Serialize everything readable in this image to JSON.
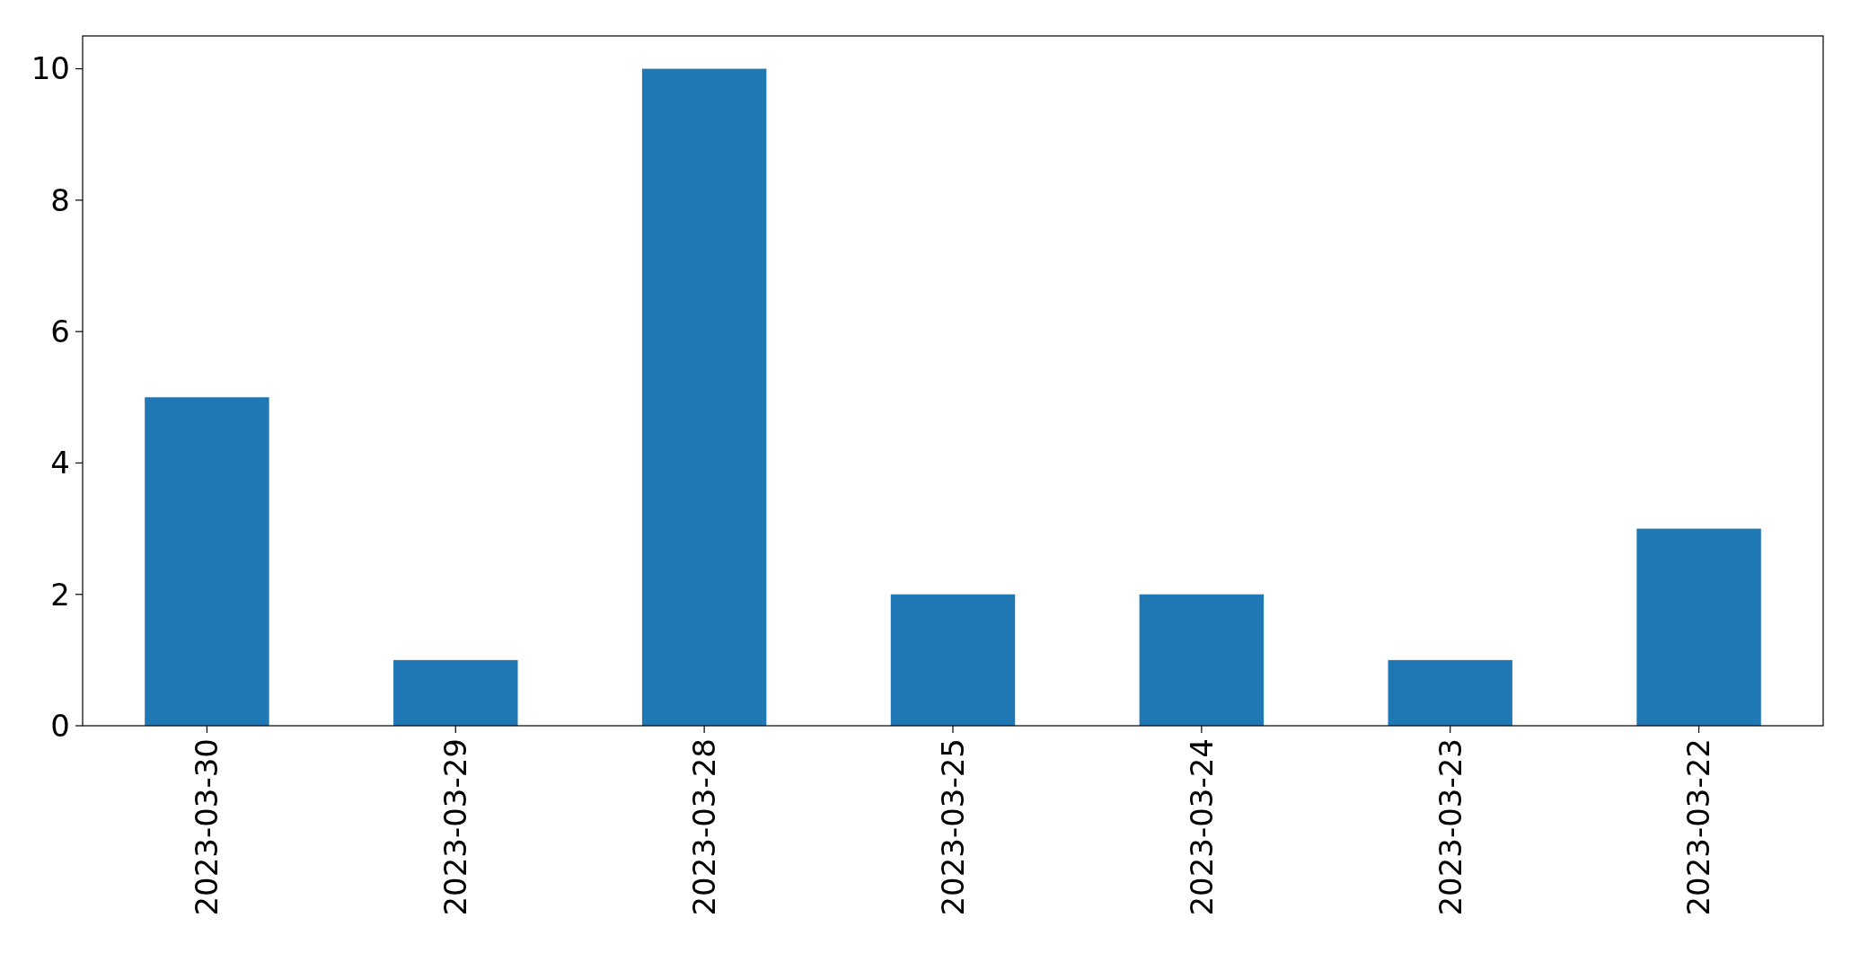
{
  "chart_data": {
    "type": "bar",
    "categories": [
      "2023-03-30",
      "2023-03-29",
      "2023-03-28",
      "2023-03-25",
      "2023-03-24",
      "2023-03-23",
      "2023-03-22"
    ],
    "values": [
      5,
      1,
      10,
      2,
      2,
      1,
      3
    ],
    "color": "#1f77b4",
    "ylim": [
      0,
      10.5
    ],
    "yticks": [
      0,
      2,
      4,
      6,
      8,
      10
    ],
    "grid": false
  }
}
